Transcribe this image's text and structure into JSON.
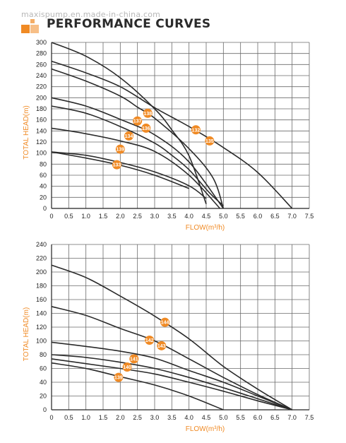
{
  "watermark": "maxispump.en.made-in-china.com",
  "header": {
    "title": "PERFORMANCE CURVES",
    "accent_color": "#f08a24"
  },
  "chart_data": [
    {
      "type": "line",
      "xlabel": "FLOW(m³/h)",
      "ylabel": "TOTAL HEAD(m)",
      "xlim": [
        0,
        7.5
      ],
      "ylim": [
        0,
        300
      ],
      "xticks": [
        "0",
        "0.5",
        "1.0",
        "1.5",
        "2.0",
        "2.5",
        "3.0",
        "3.5",
        "4.0",
        "4.5",
        "5.0",
        "5.5",
        "6.0",
        "6.5",
        "7.0",
        "7.5"
      ],
      "yticks": [
        "0",
        "20",
        "40",
        "60",
        "80",
        "100",
        "120",
        "140",
        "160",
        "180",
        "200",
        "220",
        "240",
        "260",
        "280",
        "300"
      ],
      "grid": true,
      "series": [
        {
          "name": "138",
          "label_at": [
            2.8,
            172
          ],
          "points": [
            [
              0,
              300
            ],
            [
              1,
              275
            ],
            [
              2,
              236
            ],
            [
              3,
              180
            ],
            [
              3.5,
              142
            ],
            [
              4,
              95
            ],
            [
              4.5,
              8
            ]
          ]
        },
        {
          "name": "132",
          "label_at": [
            4.2,
            142
          ],
          "points": [
            [
              0,
              266
            ],
            [
              1,
              245
            ],
            [
              2,
              220
            ],
            [
              3,
              182
            ],
            [
              4,
              148
            ],
            [
              5,
              110
            ],
            [
              6,
              65
            ],
            [
              7,
              0
            ]
          ]
        },
        {
          "name": "135",
          "label_at": [
            4.6,
            122
          ],
          "points": [
            [
              0,
              252
            ],
            [
              1,
              230
            ],
            [
              2,
              203
            ],
            [
              2.5,
              183
            ],
            [
              3,
              163
            ],
            [
              4,
              108
            ],
            [
              4.7,
              55
            ],
            [
              5,
              0
            ]
          ]
        },
        {
          "name": "137",
          "label_at": [
            2.5,
            158
          ],
          "points": [
            [
              0,
              200
            ],
            [
              1,
              185
            ],
            [
              2,
              161
            ],
            [
              3,
              133
            ],
            [
              4,
              84
            ],
            [
              5,
              0
            ]
          ]
        },
        {
          "name": "136",
          "label_at": [
            2.75,
            145
          ],
          "points": [
            [
              0,
              145
            ],
            [
              1,
              135
            ],
            [
              2,
              122
            ],
            [
              3,
              103
            ],
            [
              4,
              60
            ],
            [
              4.9,
              0
            ]
          ]
        },
        {
          "name": "134",
          "label_at": [
            2.25,
            131
          ],
          "points": [
            [
              0,
              185
            ],
            [
              1,
              172
            ],
            [
              2,
              148
            ],
            [
              3,
              118
            ],
            [
              3.5,
              96
            ],
            [
              4,
              70
            ],
            [
              4.6,
              28
            ],
            [
              5,
              5
            ]
          ]
        },
        {
          "name": "139",
          "label_at": [
            2.0,
            107
          ],
          "points": [
            [
              0,
              102
            ],
            [
              1,
              96
            ],
            [
              2,
              83
            ],
            [
              3,
              66
            ],
            [
              4,
              41
            ],
            [
              4.5,
              18
            ]
          ]
        },
        {
          "name": "133",
          "label_at": [
            1.9,
            79
          ],
          "points": [
            [
              0,
              102
            ],
            [
              1,
              91
            ],
            [
              2,
              78
            ],
            [
              3,
              60
            ],
            [
              4,
              36
            ]
          ]
        }
      ]
    },
    {
      "type": "line",
      "xlabel": "FLOW(m³/h)",
      "ylabel": "TOTAL HEAD(m)",
      "xlim": [
        0,
        7.5
      ],
      "ylim": [
        0,
        240
      ],
      "xticks": [
        "0",
        "0.5",
        "1.0",
        "1.5",
        "2.0",
        "2.5",
        "3.0",
        "3.5",
        "4.0",
        "4.5",
        "5.0",
        "5.5",
        "6.0",
        "6.5",
        "7.0",
        "7.5"
      ],
      "yticks": [
        "0",
        "20",
        "40",
        "60",
        "80",
        "100",
        "120",
        "140",
        "160",
        "180",
        "200",
        "220",
        "240"
      ],
      "grid": true,
      "series": [
        {
          "name": "144",
          "label_at": [
            3.3,
            127
          ],
          "points": [
            [
              0,
              210
            ],
            [
              1,
              192
            ],
            [
              2,
              165
            ],
            [
              3,
              136
            ],
            [
              4,
              103
            ],
            [
              5,
              63
            ],
            [
              6,
              30
            ],
            [
              7,
              0
            ]
          ]
        },
        {
          "name": "142",
          "label_at": [
            2.85,
            101
          ],
          "points": [
            [
              0,
              150
            ],
            [
              1,
              137
            ],
            [
              2,
              118
            ],
            [
              3,
              100
            ],
            [
              4,
              74
            ],
            [
              5,
              47
            ],
            [
              6,
              22
            ],
            [
              7,
              0
            ]
          ]
        },
        {
          "name": "143",
          "label_at": [
            3.2,
            93
          ],
          "points": [
            [
              0,
              98
            ],
            [
              1,
              92
            ],
            [
              2,
              85
            ],
            [
              3,
              75
            ],
            [
              4,
              57
            ],
            [
              5,
              40
            ],
            [
              6,
              20
            ],
            [
              7,
              0
            ]
          ]
        },
        {
          "name": "141",
          "label_at": [
            2.4,
            74
          ],
          "points": [
            [
              0,
              80
            ],
            [
              1,
              76
            ],
            [
              2,
              69
            ],
            [
              3,
              60
            ],
            [
              4,
              47
            ],
            [
              5,
              32
            ],
            [
              6,
              16
            ],
            [
              7,
              0
            ]
          ]
        },
        {
          "name": "140",
          "label_at": [
            2.2,
            62
          ],
          "points": [
            [
              0,
              74
            ],
            [
              1,
              67
            ],
            [
              2,
              60
            ],
            [
              3,
              52
            ],
            [
              4,
              40
            ],
            [
              5,
              27
            ],
            [
              6,
              13
            ],
            [
              7,
              0
            ]
          ]
        },
        {
          "name": "139",
          "label_at": [
            1.95,
            47
          ],
          "points": [
            [
              0,
              68
            ],
            [
              1,
              60
            ],
            [
              2,
              48
            ],
            [
              3,
              36
            ],
            [
              4,
              20
            ],
            [
              5,
              0
            ]
          ]
        }
      ]
    }
  ]
}
